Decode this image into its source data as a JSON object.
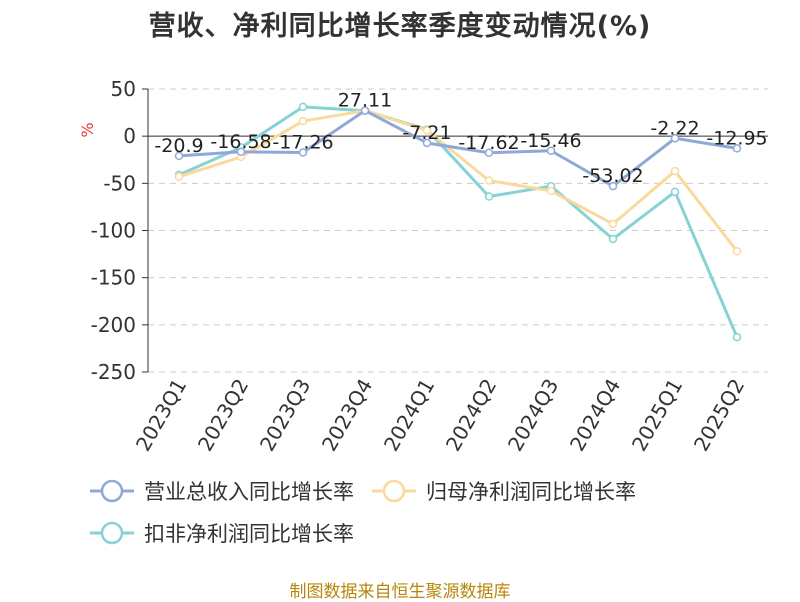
{
  "title": "营收、净利同比增长率季度变动情况(%)",
  "source": "制图数据来自恒生聚源数据库",
  "chart_data": {
    "type": "line",
    "title": "营收、净利同比增长率季度变动情况(%)",
    "ylabel": "%",
    "xlabel": "",
    "ylim": [
      -250,
      50
    ],
    "yticks": [
      50,
      0,
      -50,
      -100,
      -150,
      -200,
      -250
    ],
    "grid": true,
    "legend_position": "bottom",
    "categories": [
      "2023Q1",
      "2023Q2",
      "2023Q3",
      "2023Q4",
      "2024Q1",
      "2024Q2",
      "2024Q3",
      "2024Q4",
      "2025Q1",
      "2025Q2"
    ],
    "series": [
      {
        "name": "营业总收入同比增长率",
        "color": "#8fa8d8",
        "values": [
          -20.9,
          -16.58,
          -17.26,
          27.11,
          -7.21,
          -17.62,
          -15.46,
          -53.02,
          -2.22,
          -12.95
        ],
        "labels": [
          "-20.9",
          "-16.58",
          "-17.26",
          "27.11",
          "-7.21",
          "-17.62",
          "-15.46",
          "-53.02",
          "-2.22",
          "-12.95"
        ]
      },
      {
        "name": "归母净利润同比增长率",
        "color": "#fad99c",
        "values": [
          -43,
          -22,
          16,
          27,
          6,
          -47,
          -58,
          -93,
          -37,
          -122
        ]
      },
      {
        "name": "扣非净利润同比增长率",
        "color": "#86d2d5",
        "values": [
          -41,
          -12,
          31,
          27,
          7,
          -64,
          -53,
          -109,
          -59,
          -213
        ]
      }
    ]
  }
}
